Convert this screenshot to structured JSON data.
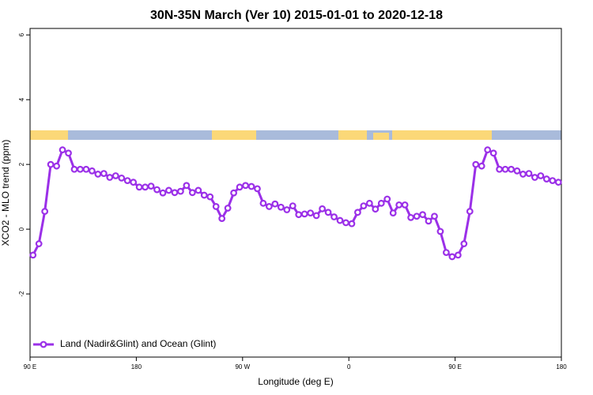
{
  "chart_data": {
    "type": "line",
    "title": "30N-35N March (Ver 10)   2015-01-01 to 2020-12-18",
    "x_label": "Longitude (deg E)",
    "y_label": "XCO2 - MLO trend (ppm)",
    "xlim": [
      90,
      540
    ],
    "ylim": [
      -3.95,
      6.2
    ],
    "xticks": [
      {
        "value": 90,
        "label": "90 E"
      },
      180,
      {
        "value": 270,
        "label": "90 W"
      },
      {
        "value": 360,
        "label": "0"
      },
      {
        "value": 450,
        "label": "90 E"
      },
      {
        "value": 540,
        "label": "180"
      }
    ],
    "yticks": [
      -2,
      0,
      2,
      4,
      6
    ],
    "legend": "bottom-left",
    "x": [
      92.5,
      97.5,
      102.5,
      107.5,
      112.5,
      117.5,
      122.5,
      127.5,
      132.5,
      137.5,
      142.5,
      147.5,
      152.5,
      157.5,
      162.5,
      167.5,
      172.5,
      177.5,
      182.5,
      187.5,
      192.5,
      197.5,
      202.5,
      207.5,
      212.5,
      217.5,
      222.5,
      227.5,
      232.5,
      237.5,
      242.5,
      247.5,
      252.5,
      257.5,
      262.5,
      267.5,
      272.5,
      277.5,
      282.5,
      287.5,
      292.5,
      297.5,
      302.5,
      307.5,
      312.5,
      317.5,
      322.5,
      327.5,
      332.5,
      337.5,
      342.5,
      347.5,
      352.5,
      357.5,
      362.5,
      367.5,
      372.5,
      377.5,
      382.5,
      387.5,
      392.5,
      397.5,
      402.5,
      407.5,
      412.5,
      417.5,
      422.5,
      427.5,
      432.5,
      437.5,
      442.5,
      447.5,
      452.5,
      457.5,
      462.5,
      467.5,
      472.5,
      477.5,
      482.5,
      487.5,
      492.5,
      497.5,
      502.5,
      507.5,
      512.5,
      517.5,
      522.5,
      527.5,
      532.5,
      537.5
    ],
    "series": [
      {
        "name": "Land (Nadir&Glint) and Ocean (Glint)",
        "color": "#9b30e8",
        "values": [
          -0.8,
          -0.45,
          0.55,
          2.0,
          1.95,
          2.45,
          2.35,
          1.85,
          1.85,
          1.85,
          1.8,
          1.7,
          1.72,
          1.6,
          1.65,
          1.58,
          1.5,
          1.45,
          1.3,
          1.3,
          1.33,
          1.22,
          1.12,
          1.2,
          1.13,
          1.17,
          1.35,
          1.13,
          1.2,
          1.05,
          1.0,
          0.7,
          0.33,
          0.65,
          1.12,
          1.3,
          1.35,
          1.32,
          1.25,
          0.8,
          0.7,
          0.78,
          0.68,
          0.6,
          0.72,
          0.45,
          0.47,
          0.5,
          0.42,
          0.63,
          0.52,
          0.38,
          0.27,
          0.2,
          0.17,
          0.52,
          0.72,
          0.8,
          0.62,
          0.8,
          0.93,
          0.5,
          0.75,
          0.75,
          0.36,
          0.4,
          0.45,
          0.25,
          0.4,
          -0.07,
          -0.72,
          -0.85,
          -0.8,
          -0.45,
          0.55,
          2.0,
          1.95,
          2.45,
          2.35,
          1.85,
          1.85,
          1.85,
          1.8,
          1.7,
          1.72,
          1.6,
          1.65,
          1.55,
          1.5,
          1.45
        ]
      }
    ]
  }
}
